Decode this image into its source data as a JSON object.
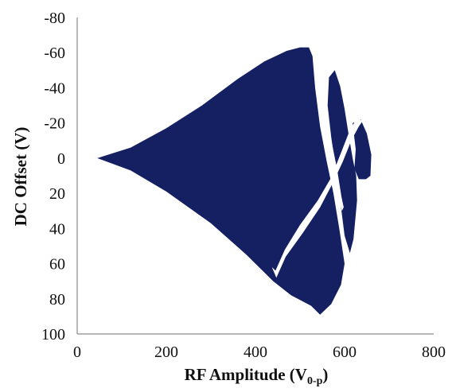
{
  "chart_data": {
    "type": "area",
    "xlabel": "RF Amplitude (V",
    "xlabel_sub": "0-p",
    "xlabel_close": ")",
    "ylabel": "DC Offset (V)",
    "xlim": [
      0,
      800
    ],
    "ylim": [
      -80,
      100
    ],
    "y_inverted": true,
    "x_ticks": [
      "0",
      "200",
      "400",
      "600",
      "800"
    ],
    "y_ticks": [
      "-80",
      "-60",
      "-40",
      "-20",
      "0",
      "20",
      "40",
      "60",
      "80",
      "100"
    ],
    "grid": false,
    "fill_color": "#142062",
    "series": [
      {
        "region": "stability-main",
        "points": [
          [
            45,
            0
          ],
          [
            120,
            -6
          ],
          [
            200,
            -17
          ],
          [
            280,
            -30
          ],
          [
            360,
            -45
          ],
          [
            420,
            -55
          ],
          [
            470,
            -61
          ],
          [
            500,
            -63
          ],
          [
            520,
            -63
          ],
          [
            528,
            -58
          ],
          [
            534,
            -40
          ],
          [
            545,
            -18
          ],
          [
            560,
            2
          ],
          [
            575,
            20
          ],
          [
            588,
            40
          ],
          [
            600,
            60
          ],
          [
            592,
            72
          ],
          [
            570,
            83
          ],
          [
            545,
            89
          ],
          [
            525,
            84
          ],
          [
            480,
            78
          ],
          [
            440,
            70
          ],
          [
            380,
            55
          ],
          [
            300,
            37
          ],
          [
            200,
            19
          ],
          [
            120,
            7
          ]
        ]
      },
      {
        "region": "stability-upper-right",
        "points": [
          [
            565,
            -46
          ],
          [
            578,
            -50
          ],
          [
            590,
            -41
          ],
          [
            600,
            -28
          ],
          [
            610,
            -12
          ],
          [
            618,
            0
          ],
          [
            626,
            10
          ],
          [
            628,
            24
          ],
          [
            620,
            46
          ],
          [
            612,
            54
          ],
          [
            600,
            44
          ],
          [
            593,
            30
          ],
          [
            585,
            15
          ],
          [
            578,
            2
          ],
          [
            570,
            -12
          ],
          [
            562,
            -30
          ]
        ]
      },
      {
        "region": "stability-right-lobe",
        "points": [
          [
            618,
            -20
          ],
          [
            636,
            -22
          ],
          [
            650,
            -14
          ],
          [
            660,
            -2
          ],
          [
            658,
            10
          ],
          [
            648,
            12
          ],
          [
            632,
            12
          ],
          [
            622,
            6
          ],
          [
            625,
            -5
          ]
        ]
      }
    ],
    "gaps": [
      {
        "region": "white-gap-lower",
        "points": [
          [
            437,
            62
          ],
          [
            445,
            64
          ],
          [
            466,
            52
          ],
          [
            500,
            38
          ],
          [
            540,
            24
          ],
          [
            570,
            11
          ],
          [
            592,
            -3
          ],
          [
            612,
            -16
          ],
          [
            628,
            -23
          ],
          [
            640,
            -21
          ],
          [
            632,
            -18
          ],
          [
            615,
            -10
          ],
          [
            596,
            2
          ],
          [
            574,
            14
          ],
          [
            545,
            28
          ],
          [
            505,
            43
          ],
          [
            468,
            56
          ],
          [
            447,
            68
          ]
        ]
      },
      {
        "region": "white-gap-upper",
        "points": [
          [
            531,
            -62
          ],
          [
            536,
            -64
          ],
          [
            543,
            -58
          ],
          [
            552,
            -42
          ],
          [
            562,
            -24
          ],
          [
            572,
            -8
          ],
          [
            583,
            6
          ],
          [
            593,
            22
          ],
          [
            598,
            28
          ],
          [
            594,
            30
          ],
          [
            585,
            20
          ],
          [
            575,
            6
          ],
          [
            565,
            -8
          ],
          [
            556,
            -25
          ],
          [
            546,
            -44
          ],
          [
            536,
            -58
          ]
        ]
      }
    ]
  }
}
